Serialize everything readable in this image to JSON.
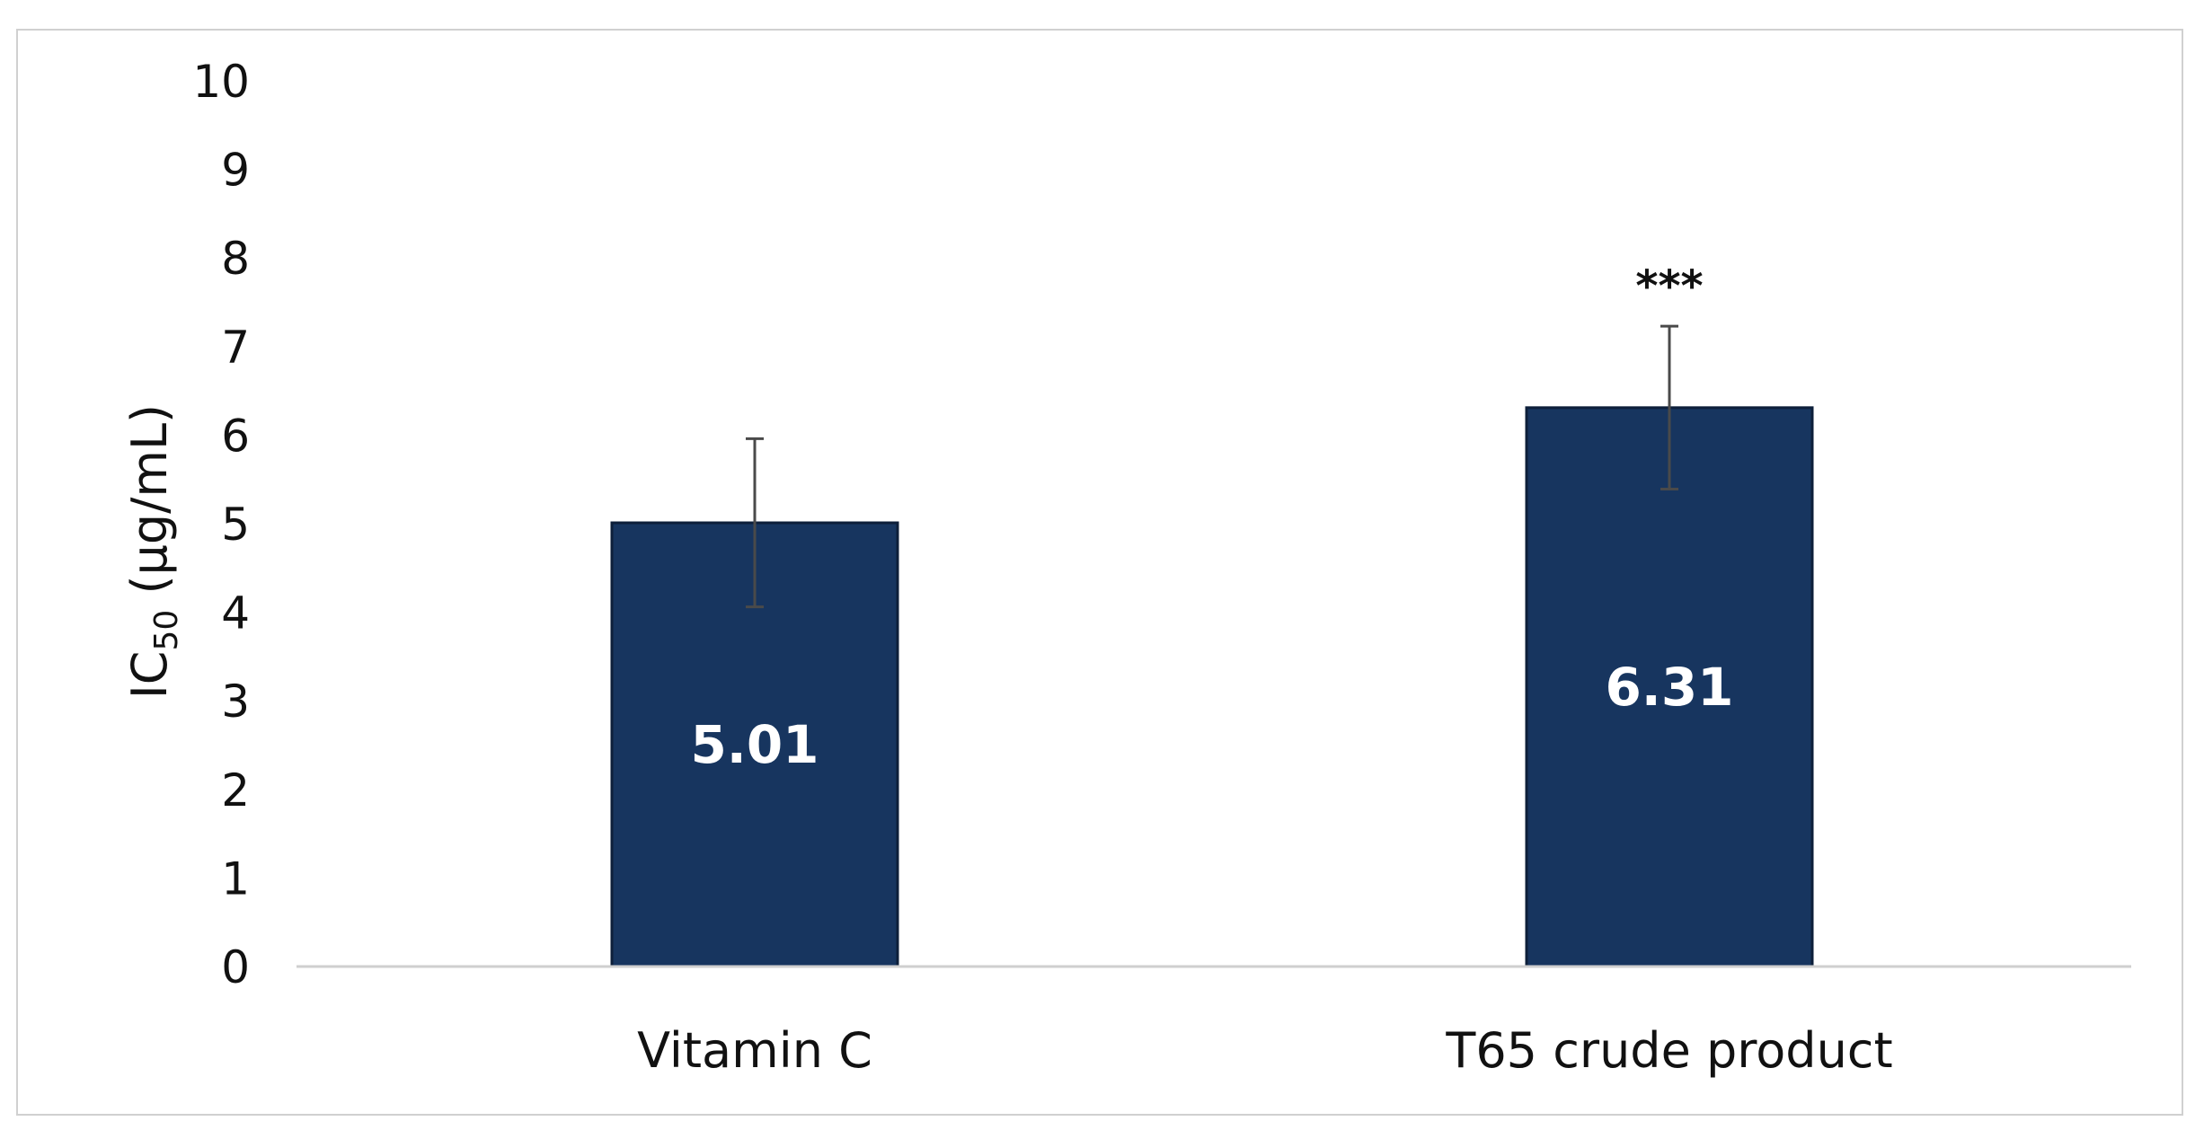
{
  "chart_data": {
    "type": "bar",
    "title": "",
    "xlabel": "",
    "ylabel_main": "IC",
    "ylabel_sub": "50",
    "ylabel_unit": " (μg/mL)",
    "ylim": [
      0,
      10
    ],
    "yticks": [
      "0",
      "1",
      "2",
      "3",
      "4",
      "5",
      "6",
      "7",
      "8",
      "9",
      "10"
    ],
    "categories": [
      "Vitamin C",
      "T65 crude product"
    ],
    "values": [
      5.01,
      6.31
    ],
    "value_labels": [
      "5.01",
      "6.31"
    ],
    "error_plus": [
      0.95,
      0.92
    ],
    "error_minus": [
      0.95,
      0.92
    ],
    "annotations": [
      "",
      "***"
    ],
    "bar_color": "#17355f",
    "bar_edge_color": "#0d1f3a",
    "axis_color": "#cfcfcf",
    "grid": false,
    "legend": "none"
  }
}
